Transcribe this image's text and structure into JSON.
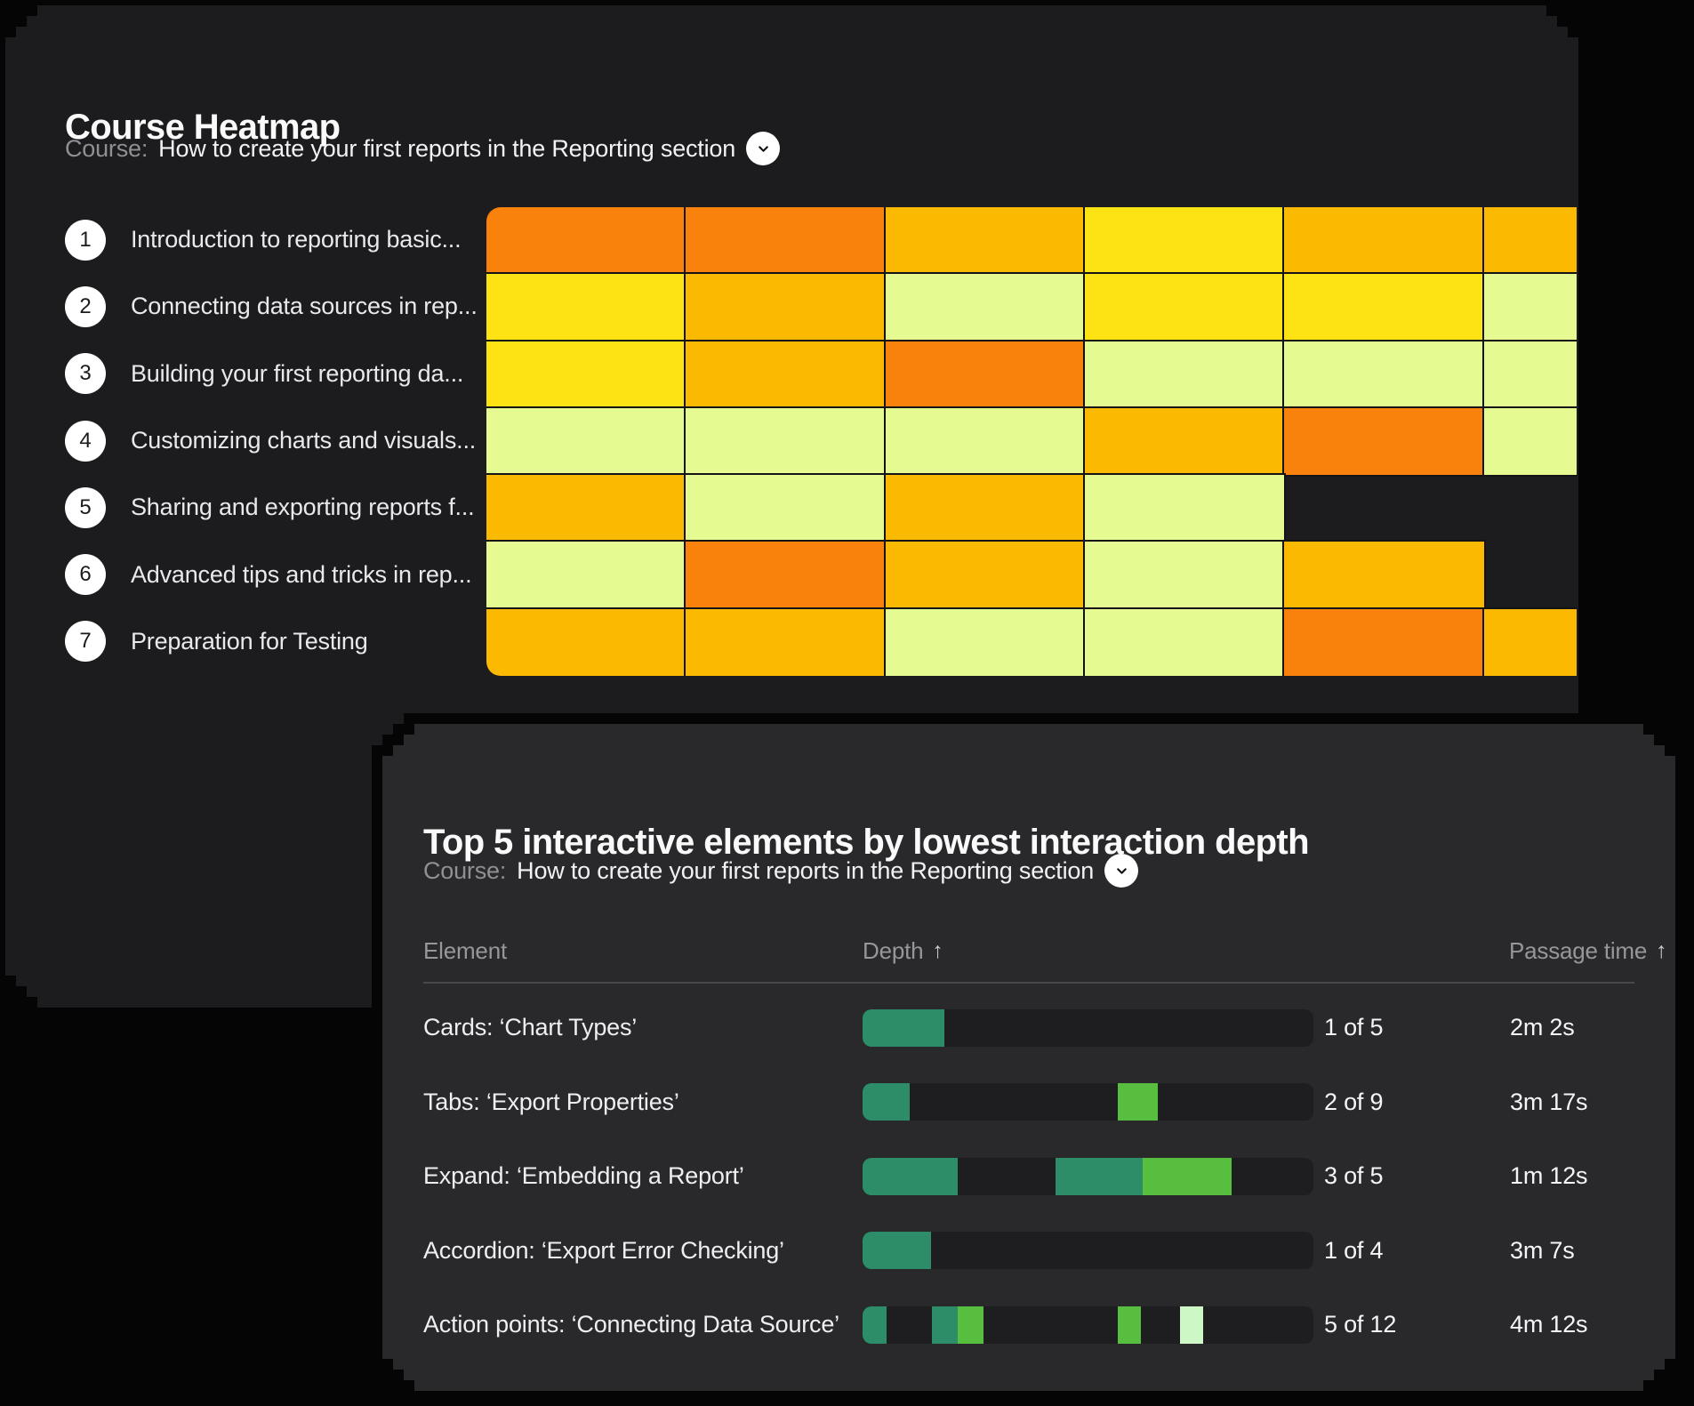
{
  "page": {
    "background": "#050505"
  },
  "colors": {
    "panel_top_bg": "#1C1C1E",
    "panel_bottom_bg": "#29292C",
    "heatmap": {
      "orange": "#F8820B",
      "amber": "#FCB902",
      "yellow": "#FDE313",
      "lime": "#E5FA90",
      "grid_line": "#141416"
    },
    "bars": {
      "teal": "#2E8D69",
      "green": "#58BE3F",
      "mint": "#CDF8C5",
      "track": "#1E1E21"
    }
  },
  "heatmap_panel": {
    "title": "Course Heatmap",
    "course_label": "Course:",
    "course_name": "How to create your first reports in the Reporting section",
    "dropdown_icon": "chevron-down"
  },
  "depth_panel": {
    "title": "Top 5 interactive elements by lowest interaction depth",
    "course_label": "Course:",
    "course_name": "How to create your first reports in the Reporting section",
    "dropdown_icon": "chevron-down",
    "columns": {
      "element": "Element",
      "depth": "Depth",
      "passage_time": "Passage time"
    },
    "sort_arrow": "↑"
  },
  "chart_data": [
    {
      "type": "heatmap",
      "title": "Course Heatmap",
      "course": "How to create your first reports in the Reporting section",
      "n_columns": 6,
      "note": "columns are unlabeled time/content segments; rightmost column is clipped by the panel edge; missing cells are empty",
      "color_levels": [
        "orange",
        "amber",
        "yellow",
        "lime"
      ],
      "rows": [
        "Introduction to reporting basic...",
        "Connecting data sources in rep...",
        "Building your first reporting da...",
        "Customizing charts and visuals...",
        "Sharing and exporting reports f...",
        "Advanced tips and tricks in rep...",
        "Preparation for Testing"
      ],
      "cells": [
        [
          "orange",
          "orange",
          "amber",
          "yellow",
          "amber",
          "amber"
        ],
        [
          "yellow",
          "amber",
          "lime",
          "yellow",
          "yellow",
          "lime"
        ],
        [
          "yellow",
          "amber",
          "orange",
          "lime",
          "lime",
          "lime"
        ],
        [
          "lime",
          "lime",
          "lime",
          "amber",
          "orange",
          "lime"
        ],
        [
          "amber",
          "lime",
          "amber",
          "lime",
          null,
          null
        ],
        [
          "lime",
          "orange",
          "amber",
          "lime",
          "amber",
          null
        ],
        [
          "amber",
          "amber",
          "lime",
          "lime",
          "orange",
          "amber"
        ]
      ]
    },
    {
      "type": "table",
      "title": "Top 5 interactive elements by lowest interaction depth",
      "course": "How to create your first reports in the Reporting section",
      "columns": [
        "Element",
        "Depth",
        "Passage time"
      ],
      "sorted_by": [
        "Depth ascending",
        "Passage time ascending"
      ],
      "rows": [
        {
          "element": "Cards: ‘Chart Types’",
          "depth": "1 of 5",
          "passage_time": "2m 2s",
          "segments": [
            {
              "x": 0,
              "w": 18.1,
              "color": "teal"
            }
          ]
        },
        {
          "element": "Tabs: ‘Export Properties’",
          "depth": "2 of 9",
          "passage_time": "3m 17s",
          "segments": [
            {
              "x": 0,
              "w": 10.4,
              "color": "teal"
            },
            {
              "x": 56.6,
              "w": 8.9,
              "color": "green"
            }
          ]
        },
        {
          "element": "Expand: ‘Embedding a Report’",
          "depth": "3 of 5",
          "passage_time": "1m 12s",
          "segments": [
            {
              "x": 0,
              "w": 21.1,
              "color": "teal"
            },
            {
              "x": 42.8,
              "w": 19.3,
              "color": "teal"
            },
            {
              "x": 62.1,
              "w": 19.8,
              "color": "green"
            }
          ]
        },
        {
          "element": "Accordion: ‘Export Error Checking’",
          "depth": "1 of 4",
          "passage_time": "3m 7s",
          "segments": [
            {
              "x": 0,
              "w": 15.2,
              "color": "teal"
            }
          ]
        },
        {
          "element": "Action points: ‘Connecting Data Source’",
          "depth": "5 of 12",
          "passage_time": "4m 12s",
          "segments": [
            {
              "x": 0,
              "w": 5.3,
              "color": "teal"
            },
            {
              "x": 15.4,
              "w": 5.7,
              "color": "teal"
            },
            {
              "x": 21.1,
              "w": 5.7,
              "color": "green"
            },
            {
              "x": 56.6,
              "w": 5.1,
              "color": "green"
            },
            {
              "x": 70.4,
              "w": 5.1,
              "color": "mint"
            }
          ]
        }
      ]
    }
  ]
}
